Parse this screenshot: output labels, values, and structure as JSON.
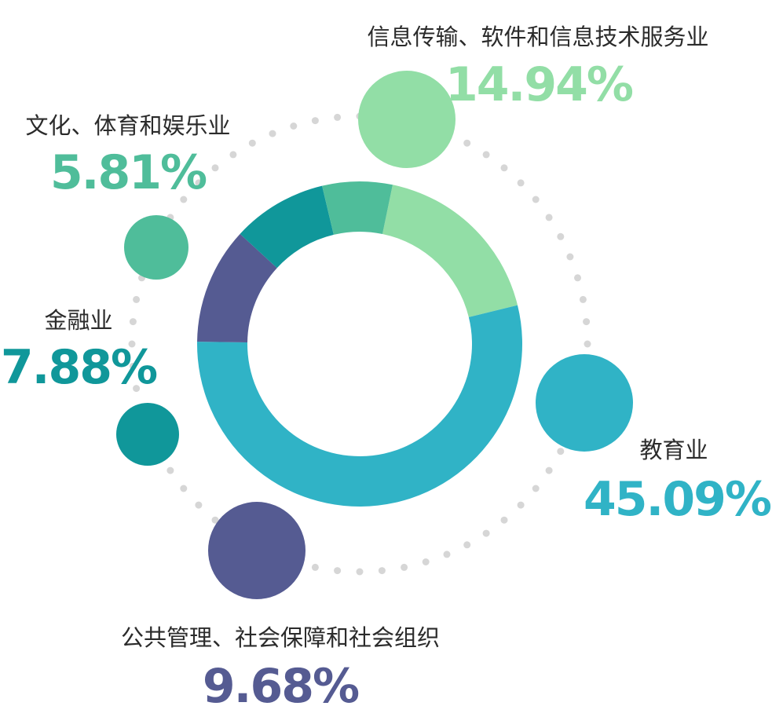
{
  "chart_data": {
    "type": "pie",
    "donut": true,
    "unit": "%",
    "categories": [
      "信息传输、软件和信息技术服务业",
      "教育业",
      "公共管理、社会保障和社会组织",
      "金融业",
      "文化、体育和娱乐业"
    ],
    "values": [
      14.94,
      45.09,
      9.68,
      7.88,
      5.81
    ],
    "value_labels": [
      "14.94%",
      "45.09%",
      "9.68%",
      "7.88%",
      "5.81%"
    ],
    "colors": [
      "#92dea6",
      "#30b3c6",
      "#555b92",
      "#10979a",
      "#4fbd9a"
    ],
    "legend": "none"
  }
}
